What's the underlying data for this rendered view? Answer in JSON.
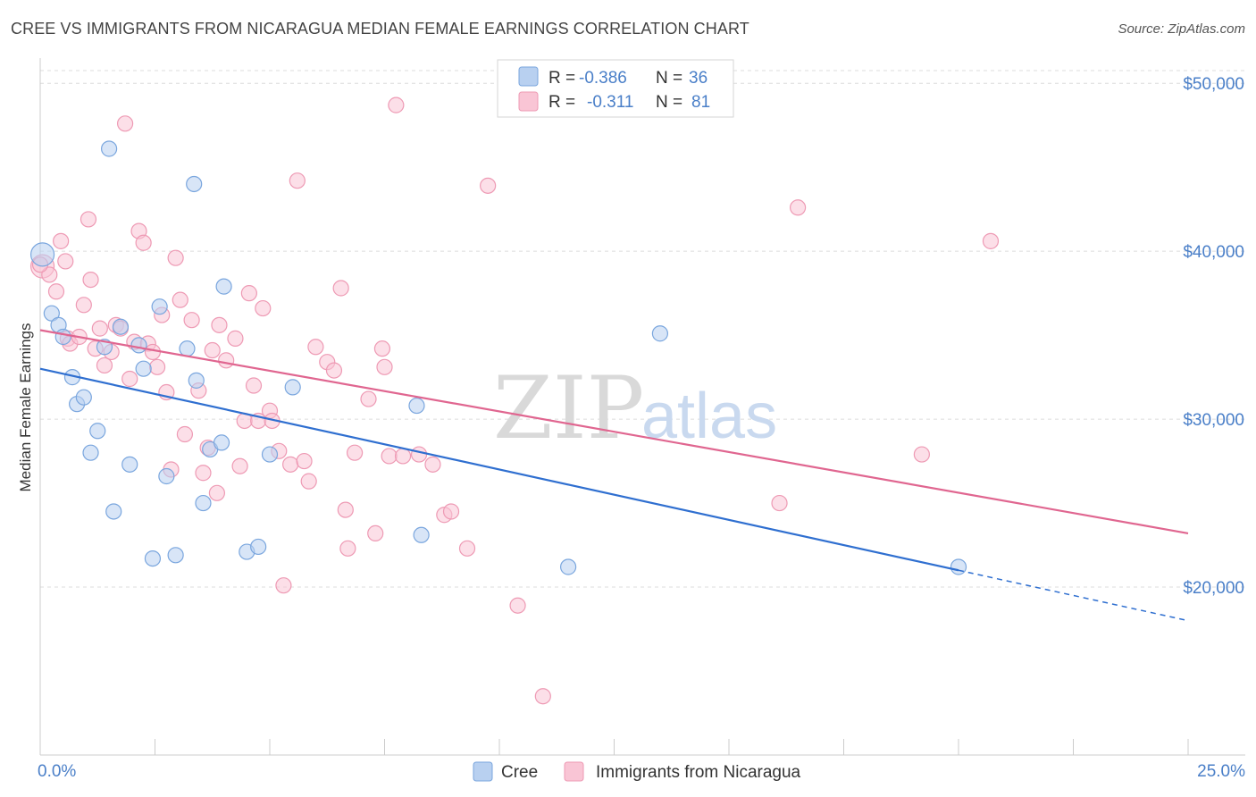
{
  "title": "CREE VS IMMIGRANTS FROM NICARAGUA MEDIAN FEMALE EARNINGS CORRELATION CHART",
  "source": "Source: ZipAtlas.com",
  "watermark": {
    "zip": "ZIP",
    "atlas": "atlas"
  },
  "colors": {
    "cree_fill": "#b8d0f0",
    "cree_stroke": "#7aa6de",
    "cree_line": "#2f6fd0",
    "nic_fill": "#f9c5d5",
    "nic_stroke": "#ee9ab4",
    "nic_line": "#e06690",
    "grid": "#dcdcdc",
    "axis_text": "#4a7fc8"
  },
  "legend": {
    "rows": [
      {
        "r_label": "R =",
        "r_value": "-0.386",
        "n_label": "N =",
        "n_value": "36"
      },
      {
        "r_label": "R =",
        "r_value": "-0.311",
        "n_label": "N =",
        "n_value": "81"
      }
    ]
  },
  "chart_data": {
    "type": "scatter",
    "title": "CREE VS IMMIGRANTS FROM NICARAGUA MEDIAN FEMALE EARNINGS CORRELATION CHART",
    "xlabel": "",
    "ylabel": "Median Female Earnings",
    "xlim": [
      0,
      25
    ],
    "ylim": [
      10000,
      51500
    ],
    "x_tick_labels": [
      "0.0%",
      "25.0%"
    ],
    "y_ticks": [
      20000,
      30000,
      40000,
      50000
    ],
    "y_tick_labels": [
      "$20,000",
      "$30,000",
      "$40,000",
      "$50,000"
    ],
    "grid": true,
    "legend_position": "top-center",
    "series": [
      {
        "name": "Cree",
        "r": -0.386,
        "n": 36,
        "trend": {
          "x0": 0,
          "y0": 33000,
          "x1": 20,
          "y1": 21000,
          "dash_to_x": 25,
          "dash_to_y": 18000
        },
        "points": [
          [
            0.05,
            39800
          ],
          [
            0.25,
            36300
          ],
          [
            0.4,
            35600
          ],
          [
            0.5,
            34900
          ],
          [
            0.7,
            32500
          ],
          [
            0.8,
            30900
          ],
          [
            0.95,
            31300
          ],
          [
            1.1,
            28000
          ],
          [
            1.25,
            29300
          ],
          [
            1.4,
            34300
          ],
          [
            1.5,
            46100
          ],
          [
            1.6,
            24500
          ],
          [
            1.75,
            35500
          ],
          [
            1.95,
            27300
          ],
          [
            2.15,
            34400
          ],
          [
            2.25,
            33000
          ],
          [
            2.45,
            21700
          ],
          [
            2.6,
            36700
          ],
          [
            2.75,
            26600
          ],
          [
            2.95,
            21900
          ],
          [
            3.2,
            34200
          ],
          [
            3.35,
            44000
          ],
          [
            3.4,
            32300
          ],
          [
            3.55,
            25000
          ],
          [
            3.7,
            28200
          ],
          [
            3.95,
            28600
          ],
          [
            4.0,
            37900
          ],
          [
            4.5,
            22100
          ],
          [
            4.75,
            22400
          ],
          [
            5.0,
            27900
          ],
          [
            5.5,
            31900
          ],
          [
            8.2,
            30800
          ],
          [
            8.3,
            23100
          ],
          [
            11.5,
            21200
          ],
          [
            13.5,
            35100
          ],
          [
            20.0,
            21200
          ]
        ]
      },
      {
        "name": "Immigrants from Nicaragua",
        "r": -0.311,
        "n": 81,
        "trend": {
          "x0": 0,
          "y0": 35300,
          "x1": 25,
          "y1": 23200
        },
        "points": [
          [
            0.05,
            39100
          ],
          [
            0.2,
            38600
          ],
          [
            0.35,
            37600
          ],
          [
            0.45,
            40600
          ],
          [
            0.55,
            39400
          ],
          [
            0.6,
            34800
          ],
          [
            0.65,
            34500
          ],
          [
            0.85,
            34900
          ],
          [
            0.95,
            36800
          ],
          [
            1.05,
            41900
          ],
          [
            1.1,
            38300
          ],
          [
            1.2,
            34200
          ],
          [
            1.3,
            35400
          ],
          [
            1.4,
            33200
          ],
          [
            1.55,
            34000
          ],
          [
            1.65,
            35600
          ],
          [
            1.75,
            35400
          ],
          [
            1.85,
            47600
          ],
          [
            1.95,
            32400
          ],
          [
            2.05,
            34600
          ],
          [
            2.15,
            41200
          ],
          [
            2.25,
            40500
          ],
          [
            2.35,
            34500
          ],
          [
            2.45,
            34000
          ],
          [
            2.55,
            33100
          ],
          [
            2.65,
            36200
          ],
          [
            2.75,
            31600
          ],
          [
            2.85,
            27000
          ],
          [
            2.95,
            39600
          ],
          [
            3.05,
            37100
          ],
          [
            3.15,
            29100
          ],
          [
            3.3,
            35900
          ],
          [
            3.45,
            31700
          ],
          [
            3.55,
            26800
          ],
          [
            3.65,
            28300
          ],
          [
            3.75,
            34100
          ],
          [
            3.85,
            25600
          ],
          [
            3.9,
            35600
          ],
          [
            4.05,
            33500
          ],
          [
            4.25,
            34800
          ],
          [
            4.35,
            27200
          ],
          [
            4.45,
            29900
          ],
          [
            4.55,
            37500
          ],
          [
            4.65,
            32000
          ],
          [
            4.75,
            29900
          ],
          [
            4.85,
            36600
          ],
          [
            5.0,
            30500
          ],
          [
            5.05,
            29900
          ],
          [
            5.2,
            28100
          ],
          [
            5.3,
            20100
          ],
          [
            5.45,
            27300
          ],
          [
            5.6,
            44200
          ],
          [
            5.75,
            27500
          ],
          [
            5.85,
            26300
          ],
          [
            6.0,
            34300
          ],
          [
            6.25,
            33400
          ],
          [
            6.4,
            32900
          ],
          [
            6.55,
            37800
          ],
          [
            6.65,
            24600
          ],
          [
            6.7,
            22300
          ],
          [
            6.85,
            28000
          ],
          [
            7.15,
            31200
          ],
          [
            7.3,
            23200
          ],
          [
            7.45,
            34200
          ],
          [
            7.5,
            33100
          ],
          [
            7.6,
            27800
          ],
          [
            7.75,
            48700
          ],
          [
            7.9,
            27800
          ],
          [
            8.25,
            27900
          ],
          [
            8.55,
            27300
          ],
          [
            8.8,
            24300
          ],
          [
            8.95,
            24500
          ],
          [
            9.3,
            22300
          ],
          [
            9.75,
            43900
          ],
          [
            10.4,
            18900
          ],
          [
            10.95,
            13500
          ],
          [
            16.1,
            25000
          ],
          [
            16.5,
            42600
          ],
          [
            19.2,
            27900
          ],
          [
            20.7,
            40600
          ],
          [
            0.0,
            39200
          ]
        ]
      }
    ],
    "bottom_legend": [
      "Cree",
      "Immigrants from Nicaragua"
    ]
  }
}
